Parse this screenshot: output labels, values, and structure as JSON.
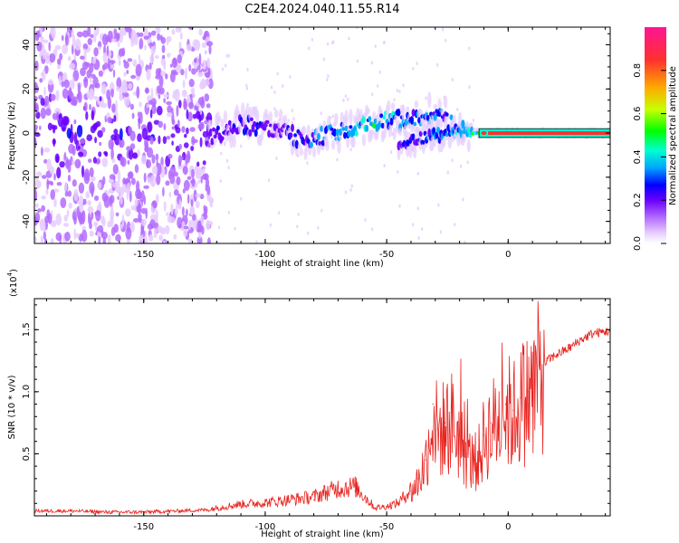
{
  "title": "C2E4.2024.040.11.55.R14",
  "colors": {
    "snr_line": "#e8221e",
    "cmap": [
      "#ffffff",
      "#e6ccff",
      "#b36bff",
      "#6a00ff",
      "#0000ff",
      "#00a5ff",
      "#00ffd0",
      "#00ff00",
      "#c8ff00",
      "#ffaa00",
      "#ff3030",
      "#ff1493"
    ]
  },
  "chart_data": [
    {
      "type": "heatmap",
      "title": "C2E4.2024.040.11.55.R14",
      "xlabel": "Height of straight line (km)",
      "ylabel": "Frequency (Hz)",
      "xlim": [
        -195,
        42
      ],
      "ylim": [
        -50,
        48
      ],
      "x_ticks": [
        -150,
        -100,
        -50,
        0
      ],
      "x_tick_labels": [
        "-150",
        "-100",
        "-50",
        "0"
      ],
      "y_ticks": [
        -40,
        -20,
        0,
        20,
        40
      ],
      "y_tick_labels": [
        "-40",
        "-20",
        "0",
        "20",
        "40"
      ],
      "colorbar": {
        "label": "Normalized spectral amplitude",
        "range": [
          0,
          1
        ],
        "ticks": [
          0,
          0.2,
          0.4,
          0.6,
          0.8
        ],
        "tick_labels": [
          "0.0",
          "0.2",
          "0.4",
          "0.6",
          "0.8"
        ]
      },
      "ridge": {
        "x": [
          -123,
          -110,
          -95,
          -85,
          -75,
          -65,
          -55,
          -48,
          -40,
          -33,
          -27,
          -22,
          -18,
          -12,
          0,
          20,
          42
        ],
        "center_freq": [
          -2,
          4,
          2,
          -3,
          -1,
          2,
          5,
          6,
          6,
          8,
          9,
          2,
          1,
          0,
          0,
          0,
          0
        ],
        "amplitude": [
          0.3,
          0.35,
          0.3,
          0.35,
          0.45,
          0.5,
          0.55,
          0.5,
          0.45,
          0.45,
          0.4,
          0.5,
          0.55,
          0.65,
          0.9,
          0.92,
          0.92
        ]
      },
      "secondary_ridge": {
        "x": [
          -45,
          -38,
          -30,
          -24,
          -18
        ],
        "center_freq": [
          -4,
          -3,
          -1,
          0,
          2
        ],
        "amplitude": [
          0.3,
          0.4,
          0.4,
          0.45,
          0.55
        ]
      },
      "noise_region": {
        "x_range": [
          -195,
          -122
        ],
        "amplitude_range": [
          0.05,
          0.3
        ]
      }
    },
    {
      "type": "line",
      "xlabel": "Height of straight line (km)",
      "ylabel": "SNR (10 * v/v)",
      "y_multiplier_label": "(x10",
      "y_multiplier_exp": "4",
      "xlim": [
        -195,
        42
      ],
      "ylim": [
        0,
        1.75
      ],
      "x_ticks": [
        -150,
        -100,
        -50,
        0
      ],
      "x_tick_labels": [
        "-150",
        "-100",
        "-50",
        "0"
      ],
      "y_ticks": [
        0.5,
        1.0,
        1.5
      ],
      "y_tick_labels": [
        "0.5",
        "1.0",
        "1.5"
      ],
      "series": [
        {
          "x": [
            -195,
            -180,
            -165,
            -150,
            -135,
            -122,
            -118,
            -110,
            -100,
            -90,
            -80,
            -70,
            -63,
            -55,
            -50,
            -45,
            -40,
            -37,
            -34,
            -31,
            -29,
            -26,
            -23,
            -20,
            -17,
            -14,
            -12,
            -10,
            -7,
            -4,
            -1,
            2,
            5,
            8,
            12,
            16,
            20,
            25,
            30,
            35,
            42
          ],
          "y": [
            0.04,
            0.04,
            0.03,
            0.03,
            0.04,
            0.05,
            0.06,
            0.08,
            0.09,
            0.11,
            0.13,
            0.19,
            0.2,
            0.06,
            0.07,
            0.1,
            0.2,
            0.3,
            0.45,
            0.9,
            0.7,
            0.75,
            0.8,
            0.65,
            0.5,
            0.45,
            0.5,
            0.65,
            0.75,
            0.8,
            0.9,
            0.85,
            0.95,
            1.0,
            1.15,
            1.25,
            1.3,
            1.35,
            1.42,
            1.47,
            1.49
          ]
        }
      ]
    }
  ]
}
